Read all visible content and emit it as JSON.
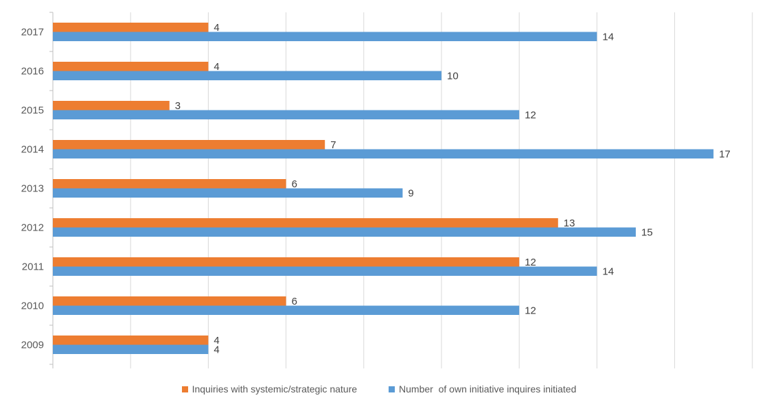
{
  "chart_data": {
    "type": "bar",
    "orientation": "horizontal",
    "title": "",
    "xlabel": "",
    "ylabel": "",
    "categories": [
      "2017",
      "2016",
      "2015",
      "2014",
      "2013",
      "2012",
      "2011",
      "2010",
      "2009"
    ],
    "series": [
      {
        "name": "Inquiries with systemic/strategic nature",
        "color": "#ED7D31",
        "values": [
          4,
          4,
          3,
          7,
          6,
          13,
          12,
          6,
          4
        ]
      },
      {
        "name": "Number  of own initiative inquires initiated",
        "color": "#5B9BD5",
        "values": [
          14,
          10,
          12,
          17,
          9,
          15,
          14,
          12,
          4
        ]
      }
    ],
    "xlim": [
      0,
      18
    ],
    "grid": true,
    "data_labels": true,
    "legend_position": "bottom"
  }
}
